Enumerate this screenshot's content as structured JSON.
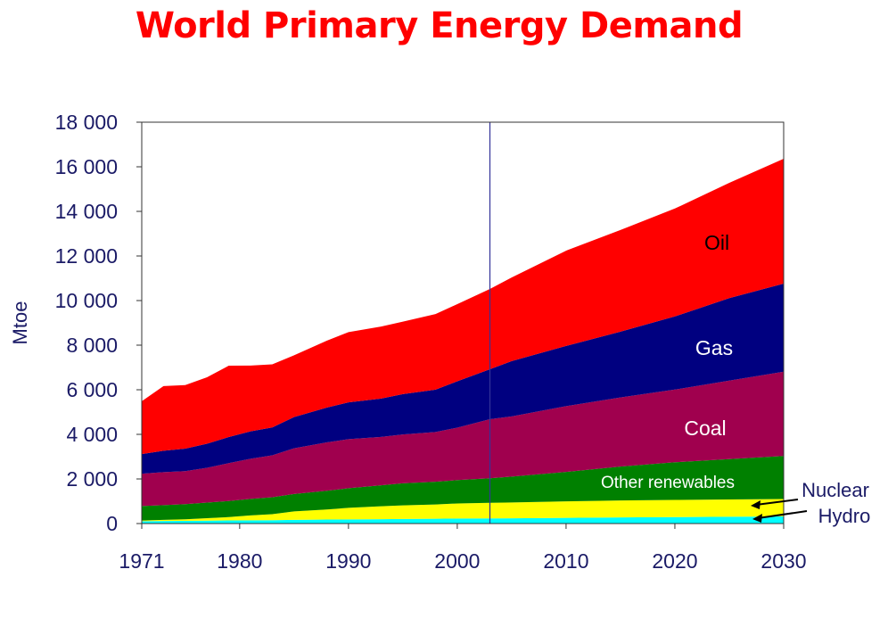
{
  "chart_data": {
    "type": "area",
    "stacked": true,
    "title": "World Primary Energy Demand",
    "ylabel": "Mtoe",
    "ylim": [
      0,
      18000
    ],
    "xlim": [
      1971,
      2030
    ],
    "y_ticks": [
      "0",
      "2 000",
      "4 000",
      "6 000",
      "8 000",
      "10 000",
      "12 000",
      "14 000",
      "16 000",
      "18 000"
    ],
    "y_tick_values": [
      0,
      2000,
      4000,
      6000,
      8000,
      10000,
      12000,
      14000,
      16000,
      18000
    ],
    "x_ticks": [
      1971,
      1980,
      1990,
      2000,
      2010,
      2020,
      2030
    ],
    "projection_start": 2003,
    "x": [
      1971,
      1973,
      1975,
      1977,
      1979,
      1981,
      1983,
      1985,
      1988,
      1990,
      1993,
      1995,
      1998,
      2000,
      2003,
      2005,
      2010,
      2015,
      2020,
      2025,
      2030
    ],
    "series": [
      {
        "name": "Hydro",
        "color": "#00ffff",
        "values": [
          105,
          115,
          120,
          130,
          140,
          145,
          150,
          165,
          180,
          185,
          195,
          205,
          215,
          225,
          230,
          235,
          255,
          275,
          290,
          305,
          320
        ]
      },
      {
        "name": "Nuclear",
        "color": "#ffff00",
        "values": [
          30,
          50,
          70,
          110,
          150,
          220,
          270,
          380,
          450,
          520,
          580,
          610,
          640,
          675,
          700,
          710,
          740,
          760,
          770,
          775,
          780
        ]
      },
      {
        "name": "Other renewables",
        "color": "#008000",
        "values": [
          650,
          660,
          680,
          700,
          720,
          740,
          760,
          780,
          840,
          880,
          940,
          990,
          1020,
          1050,
          1100,
          1160,
          1320,
          1520,
          1690,
          1810,
          1930
        ]
      },
      {
        "name": "Coal",
        "color": "#a0004e",
        "values": [
          1450,
          1480,
          1480,
          1560,
          1700,
          1800,
          1880,
          2050,
          2170,
          2200,
          2170,
          2190,
          2230,
          2350,
          2650,
          2700,
          2950,
          3100,
          3260,
          3520,
          3780
        ]
      },
      {
        "name": "Gas",
        "color": "#000080",
        "values": [
          880,
          960,
          1010,
          1080,
          1170,
          1230,
          1250,
          1400,
          1560,
          1650,
          1720,
          1810,
          1900,
          2080,
          2240,
          2480,
          2700,
          2950,
          3280,
          3700,
          3950
        ]
      },
      {
        "name": "Oil",
        "color": "#ff0000",
        "values": [
          2370,
          2900,
          2850,
          2980,
          3200,
          2950,
          2830,
          2770,
          3000,
          3150,
          3230,
          3250,
          3390,
          3460,
          3600,
          3750,
          4270,
          4560,
          4840,
          5170,
          5600
        ]
      }
    ]
  },
  "labels": {
    "oil": "Oil",
    "gas": "Gas",
    "coal": "Coal",
    "other_renewables": "Other renewables",
    "nuclear": "Nuclear",
    "hydro": "Hydro"
  }
}
